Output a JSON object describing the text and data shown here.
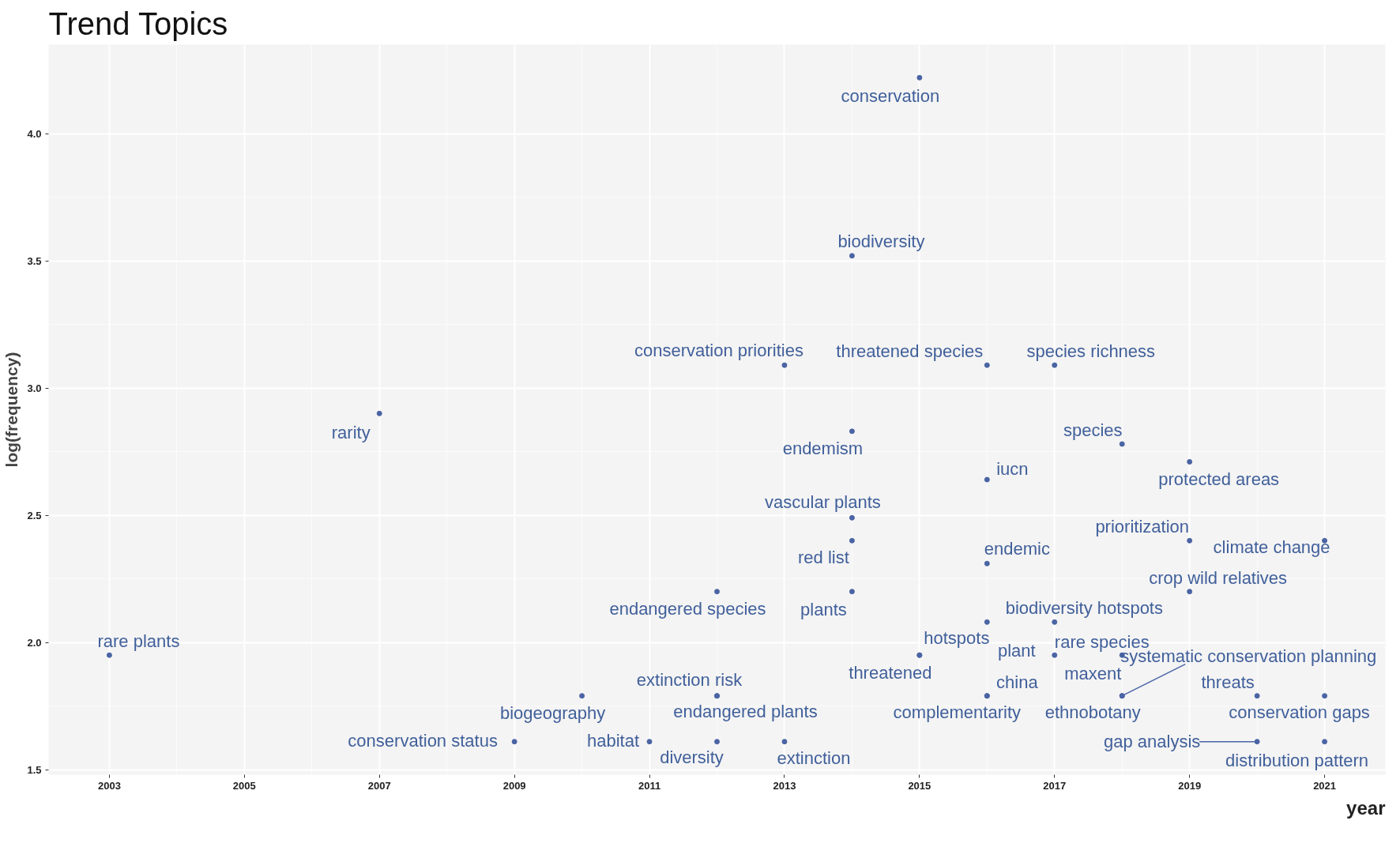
{
  "chart_data": {
    "type": "scatter",
    "title": "Trend Topics",
    "xlabel": "year",
    "ylabel": "log(frequency)",
    "xlim": [
      2002.1,
      2021.9
    ],
    "ylim": [
      1.48,
      4.35
    ],
    "xticks": [
      2003,
      2005,
      2007,
      2009,
      2011,
      2013,
      2015,
      2017,
      2019,
      2021
    ],
    "yticks": [
      {
        "value": 1.5,
        "label": "1.5"
      },
      {
        "value": 2.0,
        "label": "2.0"
      },
      {
        "value": 2.5,
        "label": "2.5"
      },
      {
        "value": 3.0,
        "label": "3.0"
      },
      {
        "value": 3.5,
        "label": "3.5"
      },
      {
        "value": 4.0,
        "label": "4.0"
      }
    ],
    "grid": true,
    "marker": "circle",
    "series": [
      {
        "color": "#4a64a4",
        "x": [
          2015,
          2014,
          2013,
          2016,
          2017,
          2007,
          2014,
          2018,
          2019,
          2016,
          2014,
          2014,
          2019,
          2021,
          2016,
          2019,
          2014,
          2012,
          2016,
          2017,
          2015,
          2015,
          2017,
          2018,
          2018,
          2018,
          2016,
          2016,
          2012,
          2012,
          2012,
          2013,
          2010,
          2009,
          2011,
          2003,
          2020,
          2021,
          2020,
          2021
        ],
        "values": [
          4.22,
          3.52,
          3.09,
          3.09,
          3.09,
          2.9,
          2.83,
          2.78,
          2.71,
          2.64,
          2.49,
          2.4,
          2.4,
          2.4,
          2.31,
          2.2,
          2.2,
          2.2,
          2.08,
          2.08,
          1.95,
          1.95,
          1.95,
          1.95,
          1.79,
          1.79,
          1.79,
          1.79,
          1.79,
          1.79,
          1.61,
          1.61,
          1.79,
          1.61,
          1.61,
          1.95,
          1.79,
          1.79,
          1.61,
          1.61
        ],
        "value_labels": [
          "conservation",
          "biodiversity",
          "conservation priorities",
          "threatened species",
          "species richness",
          "rarity",
          "endemism",
          "species",
          "protected areas",
          "iucn",
          "vascular plants",
          "red list",
          "prioritization",
          "climate change",
          "endemic",
          "crop wild relatives",
          "plants",
          "endangered species",
          "biodiversity hotspots",
          "rare species",
          "hotspots",
          "threatened",
          "plant",
          "maxent",
          "systematic conservation planning",
          "ethnobotany",
          "china",
          "complementarity",
          "extinction risk",
          "endangered plants",
          "diversity",
          "extinction",
          "biogeography",
          "conservation status",
          "habitat",
          "rare plants",
          "threats",
          "conservation gaps",
          "gap analysis",
          "distribution pattern"
        ]
      }
    ]
  }
}
